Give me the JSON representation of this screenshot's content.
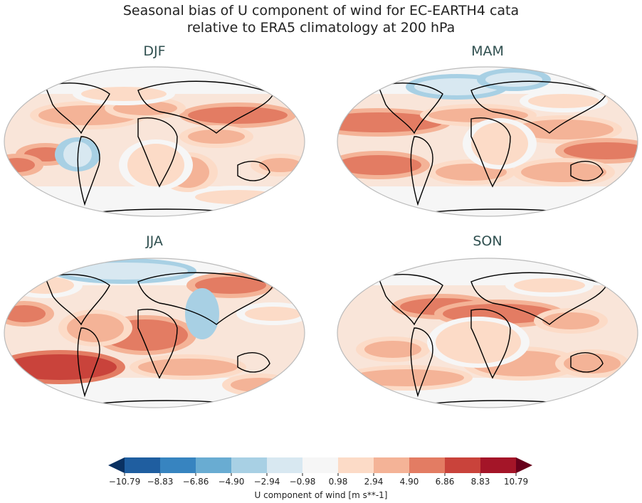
{
  "title_line1": "Seasonal bias of U component of wind for EC-EARTH4 cata",
  "title_line2": "relative to ERA5 climatology at 200 hPa",
  "panels": [
    {
      "season": "DJF"
    },
    {
      "season": "MAM"
    },
    {
      "season": "JJA"
    },
    {
      "season": "SON"
    }
  ],
  "colorbar": {
    "label": "U component of wind [m s**-1]",
    "ticks": [
      "−10.79",
      "−8.83",
      "−6.86",
      "−4.90",
      "−2.94",
      "−0.98",
      "0.98",
      "2.94",
      "4.90",
      "6.86",
      "8.83",
      "10.79"
    ],
    "colors": [
      "#1f5ea0",
      "#3784c0",
      "#69acd2",
      "#a8d0e4",
      "#d8e8f1",
      "#f6f6f6",
      "#fcdbc7",
      "#f4b397",
      "#e37c63",
      "#c9433b",
      "#a41528"
    ],
    "under_color": "#0a3162",
    "over_color": "#68001b"
  }
}
